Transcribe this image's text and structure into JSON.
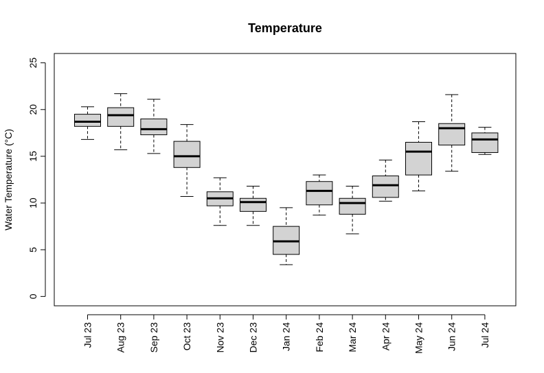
{
  "chart_data": {
    "type": "boxplot",
    "title": "Temperature",
    "xlabel": "",
    "ylabel": "Water Temperature (°C)",
    "ylim": [
      -1,
      26
    ],
    "yticks": [
      0,
      5,
      10,
      15,
      20,
      25
    ],
    "grid": false,
    "categories": [
      "Jul 23",
      "Aug 23",
      "Sep 23",
      "Oct 23",
      "Nov 23",
      "Dec 23",
      "Jan 24",
      "Feb 24",
      "Mar 24",
      "Apr 24",
      "May 24",
      "Jun 24",
      "Jul 24"
    ],
    "boxes": [
      {
        "min": 16.8,
        "q1": 18.2,
        "median": 18.7,
        "q3": 19.5,
        "max": 20.3
      },
      {
        "min": 15.7,
        "q1": 18.2,
        "median": 19.4,
        "q3": 20.2,
        "max": 21.7
      },
      {
        "min": 15.3,
        "q1": 17.3,
        "median": 17.9,
        "q3": 19.0,
        "max": 21.1
      },
      {
        "min": 10.7,
        "q1": 13.8,
        "median": 15.0,
        "q3": 16.6,
        "max": 18.4
      },
      {
        "min": 7.6,
        "q1": 9.7,
        "median": 10.5,
        "q3": 11.2,
        "max": 12.7
      },
      {
        "min": 7.6,
        "q1": 9.1,
        "median": 10.1,
        "q3": 10.5,
        "max": 11.8
      },
      {
        "min": 3.4,
        "q1": 4.5,
        "median": 5.9,
        "q3": 7.5,
        "max": 9.5
      },
      {
        "min": 8.7,
        "q1": 9.8,
        "median": 11.3,
        "q3": 12.3,
        "max": 13.0
      },
      {
        "min": 6.7,
        "q1": 8.8,
        "median": 10.0,
        "q3": 10.5,
        "max": 11.8
      },
      {
        "min": 10.2,
        "q1": 10.6,
        "median": 11.9,
        "q3": 12.9,
        "max": 14.6
      },
      {
        "min": 11.3,
        "q1": 13.0,
        "median": 15.5,
        "q3": 16.5,
        "max": 18.7
      },
      {
        "min": 13.4,
        "q1": 16.2,
        "median": 18.0,
        "q3": 18.5,
        "max": 21.6
      },
      {
        "min": 15.2,
        "q1": 15.4,
        "median": 16.8,
        "q3": 17.5,
        "max": 18.1
      }
    ],
    "box_fill": "#d3d3d3",
    "line_color": "#000000"
  }
}
